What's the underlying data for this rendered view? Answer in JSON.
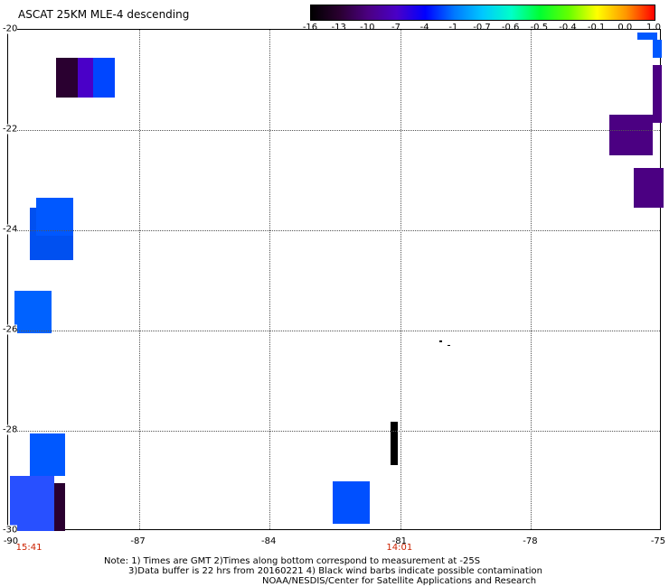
{
  "title": "ASCAT 25KM MLE-4 descending",
  "colorbar": {
    "labels": [
      "-16",
      "-13",
      "-10",
      "-7",
      "-4",
      "-1",
      "-0.7",
      "-0.6",
      "-0.5",
      "-0.4",
      "-0.1",
      "0.0",
      "1.0"
    ],
    "colors": [
      "#000000",
      "#2a0030",
      "#4b0082",
      "#4a00c8",
      "#0000ff",
      "#0078ff",
      "#00c8ff",
      "#00ffc8",
      "#00ff32",
      "#64ff00",
      "#ffff00",
      "#ff9600",
      "#ff0000"
    ]
  },
  "axes": {
    "x_ticks": [
      "-90",
      "-87",
      "-84",
      "-81",
      "-78",
      "-75"
    ],
    "y_ticks": [
      "-20",
      "-22",
      "-24",
      "-26",
      "-28",
      "-30"
    ],
    "x_range": [
      -90,
      -75
    ],
    "y_range": [
      -20,
      -30
    ]
  },
  "times": [
    {
      "label": "15:41",
      "lon": -89.5
    },
    {
      "label": "14:01",
      "lon": -81.0
    }
  ],
  "notes": {
    "line1": "Note: 1) Times are GMT 2)Times along bottom correspond to measurement at -25S",
    "line2": "3)Data buffer is 22 hrs from 20160221 4) Black wind barbs indicate possible contamination",
    "line3": "NOAA/NESDIS/Center for Satellite Applications and Research"
  },
  "chart_data": {
    "type": "heatmap",
    "title": "ASCAT 25KM MLE-4 descending",
    "xlabel": "",
    "ylabel": "",
    "xlim": [
      -90,
      -75
    ],
    "ylim": [
      -30,
      -20
    ],
    "cells": [
      {
        "lon0": -88.9,
        "lon1": -88.4,
        "lat0": -20.55,
        "lat1": -21.35,
        "color": "#2a0030"
      },
      {
        "lon0": -88.4,
        "lon1": -88.05,
        "lat0": -20.55,
        "lat1": -21.35,
        "color": "#4a00c8"
      },
      {
        "lon0": -88.05,
        "lon1": -87.55,
        "lat0": -20.55,
        "lat1": -21.35,
        "color": "#0046ff"
      },
      {
        "lon0": -75.55,
        "lon1": -75.1,
        "lat0": -20.05,
        "lat1": -20.2,
        "color": "#0058ff"
      },
      {
        "lon0": -75.2,
        "lon1": -75.0,
        "lat0": -20.2,
        "lat1": -20.55,
        "color": "#0058ff"
      },
      {
        "lon0": -75.2,
        "lon1": -75.0,
        "lat0": -20.7,
        "lat1": -21.85,
        "color": "#4b0082"
      },
      {
        "lon0": -76.2,
        "lon1": -75.2,
        "lat0": -21.7,
        "lat1": -22.5,
        "color": "#4b0082"
      },
      {
        "lon0": -75.65,
        "lon1": -74.95,
        "lat0": -22.75,
        "lat1": -23.55,
        "color": "#4b0082"
      },
      {
        "lon0": -89.35,
        "lon1": -88.5,
        "lat0": -23.35,
        "lat1": -24.1,
        "color": "#0058ff"
      },
      {
        "lon0": -89.5,
        "lon1": -88.5,
        "lat0": -23.55,
        "lat1": -24.6,
        "color": "#0050f0"
      },
      {
        "lon0": -89.85,
        "lon1": -89.0,
        "lat0": -25.2,
        "lat1": -26.05,
        "color": "#0062ff"
      },
      {
        "lon0": -89.5,
        "lon1": -88.7,
        "lat0": -28.05,
        "lat1": -28.9,
        "color": "#0058ff"
      },
      {
        "lon0": -89.95,
        "lon1": -88.95,
        "lat0": -28.9,
        "lat1": -30.0,
        "color": "#2850ff"
      },
      {
        "lon0": -89.95,
        "lon1": -89.1,
        "lat0": -29.05,
        "lat1": -29.85,
        "color": "#4a00c8"
      },
      {
        "lon0": -89.6,
        "lon1": -88.95,
        "lat0": -29.05,
        "lat1": -30.0,
        "color": "#4b0082"
      },
      {
        "lon0": -89.05,
        "lon1": -88.7,
        "lat0": -29.05,
        "lat1": -30.0,
        "color": "#2a0030"
      },
      {
        "lon0": -89.95,
        "lon1": -89.65,
        "lat0": -29.85,
        "lat1": -30.0,
        "color": "#0058ff"
      },
      {
        "lon0": -82.55,
        "lon1": -81.7,
        "lat0": -29.0,
        "lat1": -29.85,
        "color": "#0050ff"
      }
    ]
  }
}
